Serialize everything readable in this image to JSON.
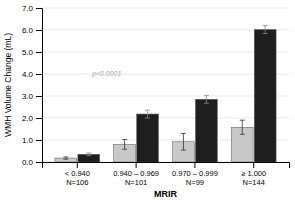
{
  "chart_data": {
    "type": "bar",
    "categories": [
      "< 0.940\nN=106",
      "0.940 – 0.969\nN=101",
      "0.970 – 0.999\nN=99",
      "≥ 1.000\nN=144"
    ],
    "series": [
      {
        "color": "#c8c8c8",
        "values": [
          0.18,
          0.8,
          0.92,
          1.58
        ],
        "errors": [
          0.05,
          0.22,
          0.38,
          0.32
        ]
      },
      {
        "color": "#1e1e1e",
        "values": [
          0.35,
          2.18,
          2.85,
          6.02
        ],
        "errors": [
          0.06,
          0.18,
          0.18,
          0.18
        ]
      }
    ],
    "xlabel": "MRIR",
    "ylabel": "WMH Volume Change (mL)",
    "ylim": [
      0,
      7.0
    ],
    "yticks": [
      {
        "value": 0,
        "label": "0.0"
      },
      {
        "value": 1.0,
        "label": "1.0"
      },
      {
        "value": 2.0,
        "label": "2.0"
      },
      {
        "value": 3.0,
        "label": "3.0"
      },
      {
        "value": 4.0,
        "label": "4.0"
      },
      {
        "value": 5.0,
        "label": "5.0"
      },
      {
        "value": 6.0,
        "label": "6.0"
      },
      {
        "value": 7.0,
        "label": "7.0"
      }
    ],
    "grid": true,
    "annotation": "p<0.0001"
  }
}
